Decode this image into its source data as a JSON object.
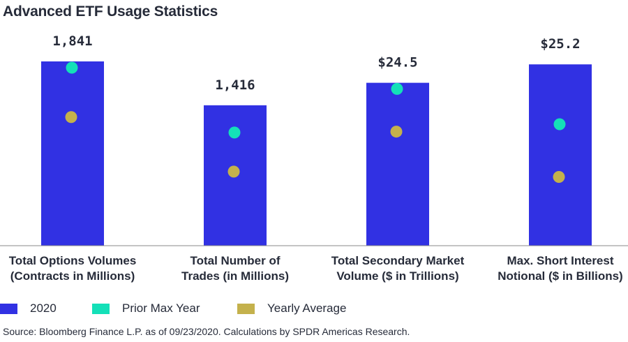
{
  "title": "Advanced ETF Usage Statistics",
  "colors": {
    "bar": "#3131e3",
    "prior_max": "#14e0b8",
    "yearly_avg": "#c4b14c",
    "text": "#262b39",
    "axis": "#8a8a8a"
  },
  "chart_data": {
    "type": "bar",
    "title": "Advanced ETF Usage Statistics",
    "normalization": "each category is scaled independently; its 2020 bar is drawn relative to its own prior max and yearly average",
    "categories": [
      {
        "label_lines": [
          "Total Options Volumes",
          "(Contracts in Millions)"
        ],
        "value_label": "1,841",
        "value_2020": 1.0,
        "prior_max_year": 0.966,
        "yearly_average": 0.698
      },
      {
        "label_lines": [
          "Total Number of",
          "Trades (in Millions)"
        ],
        "value_label": "1,416",
        "value_2020": 0.762,
        "prior_max_year": 0.614,
        "yearly_average": 0.402
      },
      {
        "label_lines": [
          "Total Secondary Market",
          "Volume ($ in Trillions)"
        ],
        "value_label": "$24.5",
        "value_2020": 0.884,
        "prior_max_year": 0.851,
        "yearly_average": 0.619
      },
      {
        "label_lines": [
          "Max. Short Interest",
          "Notional ($ in Billions)"
        ],
        "value_label": "$25.2",
        "value_2020": 0.984,
        "prior_max_year": 0.659,
        "yearly_average": 0.373
      }
    ],
    "legend": [
      "2020",
      "Prior Max Year",
      "Yearly Average"
    ],
    "legend_position": "bottom-left",
    "grid": false
  },
  "source": "Source: Bloomberg Finance L.P. as of 09/23/2020. Calculations by SPDR Americas Research."
}
